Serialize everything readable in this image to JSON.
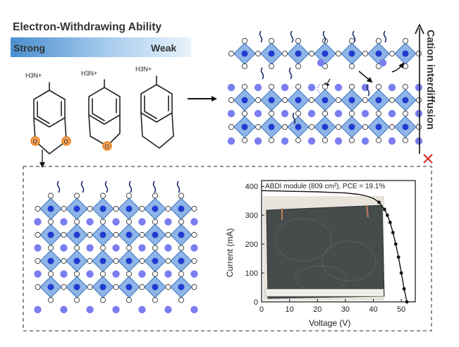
{
  "header": {
    "title": "Electron-Withdrawing Ability",
    "strong_label": "Strong",
    "weak_label": "Weak"
  },
  "molecules": {
    "amine_label": "H3N+",
    "oxygen_label": "O"
  },
  "side_label": "Cation interdiffusion",
  "inset_chart": {
    "annotation": "ABDI module (809 cm²), PCE = 19.1%",
    "xlabel": "Voltage (V)",
    "ylabel": "Current (mA)"
  },
  "chart_data": {
    "type": "line",
    "title": "",
    "xlabel": "Voltage (V)",
    "ylabel": "Current (mA)",
    "xlim": [
      0,
      55
    ],
    "ylim": [
      0,
      420
    ],
    "x_ticks": [
      0,
      10,
      20,
      30,
      40,
      50
    ],
    "y_ticks": [
      0,
      100,
      200,
      300,
      400
    ],
    "annotation": "ABDI module (809 cm²), PCE = 19.1%",
    "series": [
      {
        "x": [
          0,
          5,
          10,
          15,
          20,
          25,
          30,
          35,
          38,
          40,
          42,
          44,
          45,
          46,
          47,
          48,
          49,
          50,
          51,
          52
        ],
        "y": [
          385,
          384,
          383,
          382,
          381,
          379,
          377,
          372,
          365,
          358,
          345,
          320,
          300,
          275,
          240,
          200,
          155,
          100,
          45,
          0
        ]
      }
    ]
  },
  "colors": {
    "octahedron_fill": "#8fb5e6",
    "octahedron_stroke": "#4a7ec8",
    "b_site": "#1f3bd0",
    "a_cation": "#7a7ef0",
    "halide": "#ffffff",
    "header_gradient_start": "#4a8fd0",
    "oxygen": "#e8801a",
    "cross": "#e0302a"
  }
}
